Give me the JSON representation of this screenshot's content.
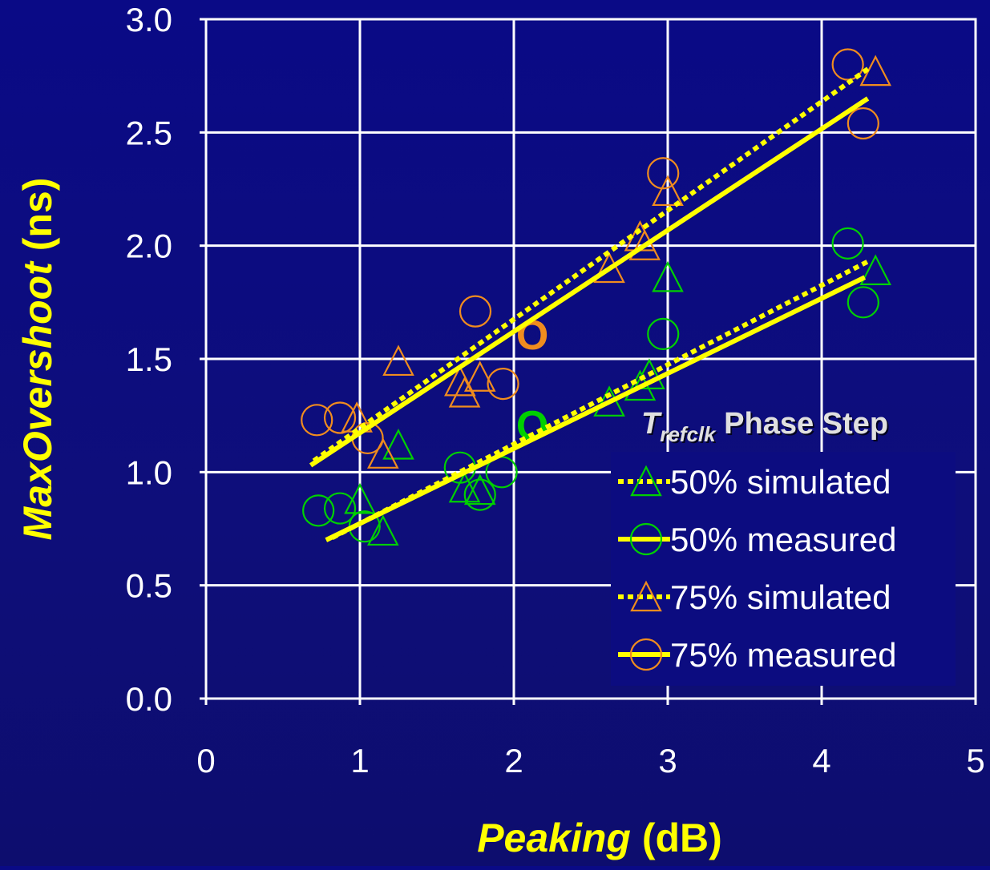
{
  "chart_data": {
    "type": "scatter",
    "xlabel": {
      "main": "Peaking",
      "unit": "(dB)"
    },
    "ylabel": {
      "main": "MaxOvershoot",
      "unit": "(ns)"
    },
    "xlim": [
      0,
      5
    ],
    "ylim": [
      0,
      3
    ],
    "x_ticks": [
      "0",
      "1",
      "2",
      "3",
      "4",
      "5"
    ],
    "y_ticks": [
      "0.0",
      "0.5",
      "1.0",
      "1.5",
      "2.0",
      "2.5",
      "3.0"
    ],
    "grid": true,
    "legend_placement": "bottom-right",
    "legend_title": {
      "symbol": "T",
      "subscript": "refclk",
      "rest": "Phase Step"
    },
    "colors": {
      "background": "#0c0c80",
      "grid": "#ffffff",
      "fit_line": "#ffff00",
      "green_series": "#00d000",
      "orange_series": "#f08c1e",
      "axis_label": "#ffff00",
      "tick_label": "#ffffff"
    },
    "series": [
      {
        "name": "50% simulated",
        "marker": "triangle",
        "color": "#00d000",
        "line": "dotted",
        "fit": [
          [
            0.82,
            0.71
          ],
          [
            4.3,
            1.93
          ]
        ],
        "points": [
          [
            1.0,
            0.88
          ],
          [
            1.15,
            0.74
          ],
          [
            1.25,
            1.12
          ],
          [
            1.68,
            0.93
          ],
          [
            1.78,
            0.92
          ],
          [
            2.62,
            1.31
          ],
          [
            2.82,
            1.38
          ],
          [
            2.88,
            1.43
          ],
          [
            3.0,
            1.86
          ],
          [
            4.35,
            1.89
          ]
        ]
      },
      {
        "name": "50% measured",
        "marker": "circle",
        "color": "#00d000",
        "line": "solid",
        "fit": [
          [
            0.78,
            0.7
          ],
          [
            4.28,
            1.86
          ]
        ],
        "points": [
          [
            0.73,
            0.83
          ],
          [
            0.87,
            0.84
          ],
          [
            1.03,
            0.76
          ],
          [
            1.65,
            1.02
          ],
          [
            1.78,
            0.9
          ],
          [
            1.92,
            1.0
          ],
          [
            2.97,
            1.61
          ],
          [
            4.17,
            2.01
          ],
          [
            4.27,
            1.75
          ]
        ]
      },
      {
        "name": "75% simulated",
        "marker": "triangle",
        "color": "#f08c1e",
        "line": "dotted",
        "fit": [
          [
            0.7,
            1.05
          ],
          [
            4.32,
            2.79
          ]
        ],
        "points": [
          [
            0.98,
            1.24
          ],
          [
            1.15,
            1.08
          ],
          [
            1.25,
            1.49
          ],
          [
            1.65,
            1.4
          ],
          [
            1.68,
            1.35
          ],
          [
            1.78,
            1.42
          ],
          [
            2.62,
            1.9
          ],
          [
            2.82,
            2.04
          ],
          [
            2.85,
            2.0
          ],
          [
            3.0,
            2.24
          ],
          [
            4.35,
            2.77
          ]
        ]
      },
      {
        "name": "75% measured",
        "marker": "circle",
        "color": "#f08c1e",
        "line": "solid",
        "fit": [
          [
            0.68,
            1.03
          ],
          [
            4.3,
            2.65
          ]
        ],
        "points": [
          [
            0.72,
            1.23
          ],
          [
            0.87,
            1.24
          ],
          [
            1.05,
            1.15
          ],
          [
            1.75,
            1.71
          ],
          [
            1.93,
            1.39
          ],
          [
            2.97,
            2.32
          ],
          [
            4.17,
            2.8
          ],
          [
            4.27,
            2.54
          ]
        ]
      }
    ],
    "annotations": [
      {
        "text": "O",
        "x": 2.12,
        "y": 1.61,
        "color": "#f08c1e"
      },
      {
        "text": "O",
        "x": 2.12,
        "y": 1.21,
        "color": "#00d000"
      }
    ]
  }
}
